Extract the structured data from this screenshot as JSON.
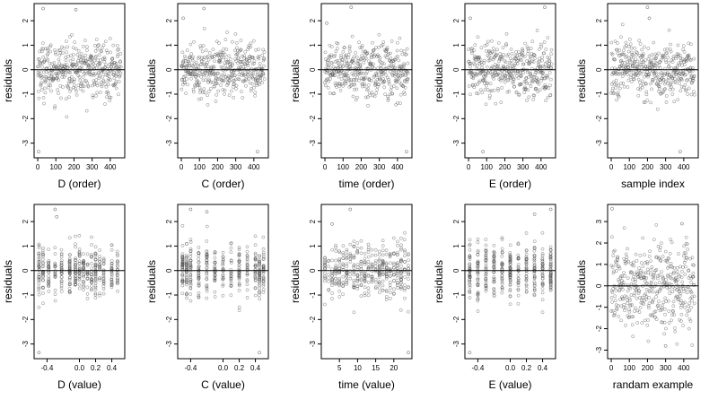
{
  "figure": {
    "background": "#ffffff",
    "point_color": "#555555",
    "axis_color": "#000000",
    "zero_line_color": "#000000"
  },
  "chart_data": [
    {
      "type": "scatter",
      "xlabel": "D (order)",
      "ylabel": "residuals",
      "xlim": [
        -20,
        480
      ],
      "ylim": [
        -3.6,
        2.7
      ],
      "xticks": [
        0,
        100,
        200,
        300,
        400
      ],
      "xtick_labels": [
        "0",
        "100",
        "200",
        "300",
        "400"
      ],
      "yticks": [
        -3,
        -2,
        -1,
        0,
        1,
        2
      ],
      "ytick_labels": [
        "-3",
        "-2",
        "-1",
        "0",
        "1",
        "2"
      ],
      "reference_line_y": 0,
      "grid": false,
      "x_distribution": "order",
      "n_points": 420,
      "y_spread": 0.55,
      "note_outliers": [
        [
          5,
          -3.35
        ],
        [
          30,
          2.5
        ],
        [
          210,
          2.45
        ]
      ]
    },
    {
      "type": "scatter",
      "xlabel": "C (order)",
      "ylabel": "residuals",
      "xlim": [
        -20,
        480
      ],
      "ylim": [
        -3.6,
        2.7
      ],
      "xticks": [
        0,
        100,
        200,
        300,
        400
      ],
      "xtick_labels": [
        "0",
        "100",
        "200",
        "300",
        "400"
      ],
      "yticks": [
        -3,
        -2,
        -1,
        0,
        1,
        2
      ],
      "ytick_labels": [
        "-3",
        "-2",
        "-1",
        "0",
        "1",
        "2"
      ],
      "reference_line_y": 0,
      "grid": false,
      "x_distribution": "order",
      "n_points": 420,
      "y_spread": 0.55,
      "note_outliers": [
        [
          420,
          -3.35
        ],
        [
          125,
          2.5
        ],
        [
          10,
          2.1
        ]
      ]
    },
    {
      "type": "scatter",
      "xlabel": "time (order)",
      "ylabel": "residuals",
      "xlim": [
        -20,
        480
      ],
      "ylim": [
        -3.6,
        2.7
      ],
      "xticks": [
        0,
        100,
        200,
        300,
        400
      ],
      "xtick_labels": [
        "0",
        "100",
        "200",
        "300",
        "400"
      ],
      "yticks": [
        -3,
        -2,
        -1,
        0,
        1,
        2
      ],
      "ytick_labels": [
        "-3",
        "-2",
        "-1",
        "0",
        "1",
        "2"
      ],
      "reference_line_y": 0,
      "grid": false,
      "x_distribution": "order",
      "n_points": 420,
      "y_spread": 0.55,
      "note_outliers": [
        [
          450,
          -3.35
        ],
        [
          145,
          2.55
        ],
        [
          10,
          1.9
        ]
      ]
    },
    {
      "type": "scatter",
      "xlabel": "E (order)",
      "ylabel": "residuals",
      "xlim": [
        -20,
        480
      ],
      "ylim": [
        -3.6,
        2.7
      ],
      "xticks": [
        0,
        100,
        200,
        300,
        400
      ],
      "xtick_labels": [
        "0",
        "100",
        "200",
        "300",
        "400"
      ],
      "yticks": [
        -3,
        -2,
        -1,
        0,
        1,
        2
      ],
      "ytick_labels": [
        "-3",
        "-2",
        "-1",
        "0",
        "1",
        "2"
      ],
      "reference_line_y": 0,
      "grid": false,
      "x_distribution": "order",
      "n_points": 420,
      "y_spread": 0.55,
      "note_outliers": [
        [
          80,
          -3.35
        ],
        [
          420,
          2.55
        ],
        [
          10,
          2.1
        ]
      ]
    },
    {
      "type": "scatter",
      "xlabel": "sample index",
      "ylabel": "residuals",
      "xlim": [
        -20,
        480
      ],
      "ylim": [
        -3.6,
        2.7
      ],
      "xticks": [
        0,
        100,
        200,
        300,
        400
      ],
      "xtick_labels": [
        "0",
        "100",
        "200",
        "300",
        "400"
      ],
      "yticks": [
        -3,
        -2,
        -1,
        0,
        1,
        2
      ],
      "ytick_labels": [
        "-3",
        "-2",
        "-1",
        "0",
        "1",
        "2"
      ],
      "reference_line_y": 0,
      "grid": false,
      "x_distribution": "order",
      "n_points": 420,
      "y_spread": 0.55,
      "note_outliers": [
        [
          380,
          -3.35
        ],
        [
          200,
          2.55
        ],
        [
          210,
          2.1
        ]
      ]
    },
    {
      "type": "scatter",
      "xlabel": "D (value)",
      "ylabel": "residuals",
      "xlim": [
        -0.56,
        0.56
      ],
      "ylim": [
        -3.6,
        2.7
      ],
      "xticks": [
        -0.4,
        0.0,
        0.2,
        0.4
      ],
      "xtick_labels": [
        "-0.4",
        "0.0",
        "0.2",
        "0.4"
      ],
      "yticks": [
        -3,
        -2,
        -1,
        0,
        1,
        2
      ],
      "ytick_labels": [
        "-3",
        "-2",
        "-1",
        "0",
        "1",
        "2"
      ],
      "reference_line_y": 0,
      "grid": false,
      "x_distribution": "discrete",
      "x_levels": [
        -0.5,
        -0.45,
        -0.38,
        -0.3,
        -0.22,
        -0.12,
        -0.05,
        0.0,
        0.05,
        0.1,
        0.15,
        0.2,
        0.25,
        0.3,
        0.4,
        0.47
      ],
      "n_points": 420,
      "y_spread": 0.5,
      "note_outliers": [
        [
          -0.5,
          -3.35
        ],
        [
          -0.3,
          2.5
        ],
        [
          -0.28,
          2.2
        ]
      ]
    },
    {
      "type": "scatter",
      "xlabel": "C (value)",
      "ylabel": "residuals",
      "xlim": [
        -0.56,
        0.56
      ],
      "ylim": [
        -3.6,
        2.7
      ],
      "xticks": [
        -0.4,
        0.0,
        0.2,
        0.4
      ],
      "xtick_labels": [
        "-0.4",
        "0.0",
        "0.2",
        "0.4"
      ],
      "yticks": [
        -3,
        -2,
        -1,
        0,
        1,
        2
      ],
      "ytick_labels": [
        "-3",
        "-2",
        "-1",
        "0",
        "1",
        "2"
      ],
      "reference_line_y": 0,
      "grid": false,
      "x_distribution": "discrete",
      "x_levels": [
        -0.5,
        -0.45,
        -0.4,
        -0.3,
        -0.2,
        -0.1,
        0.0,
        0.1,
        0.2,
        0.3,
        0.4,
        0.45,
        0.5
      ],
      "n_points": 420,
      "y_spread": 0.55,
      "note_outliers": [
        [
          0.45,
          -3.35
        ],
        [
          -0.4,
          2.5
        ],
        [
          -0.2,
          2.4
        ]
      ]
    },
    {
      "type": "scatter",
      "xlabel": "time (value)",
      "ylabel": "residuals",
      "xlim": [
        0,
        25
      ],
      "ylim": [
        -3.6,
        2.7
      ],
      "xticks": [
        5,
        10,
        15,
        20
      ],
      "xtick_labels": [
        "5",
        "10",
        "15",
        "20"
      ],
      "yticks": [
        -3,
        -2,
        -1,
        0,
        1,
        2
      ],
      "ytick_labels": [
        "-3",
        "-2",
        "-1",
        "0",
        "1",
        "2"
      ],
      "reference_line_y": 0,
      "grid": false,
      "x_distribution": "discrete",
      "x_levels": [
        1,
        2,
        3,
        4,
        5,
        6,
        7,
        8,
        9,
        10,
        11,
        12,
        13,
        14,
        15,
        16,
        17,
        18,
        19,
        20,
        21,
        22,
        23,
        24
      ],
      "n_points": 420,
      "y_spread": 0.55,
      "note_outliers": [
        [
          24,
          -3.35
        ],
        [
          8,
          2.5
        ],
        [
          3,
          1.9
        ]
      ]
    },
    {
      "type": "scatter",
      "xlabel": "E (value)",
      "ylabel": "residuals",
      "xlim": [
        -0.56,
        0.56
      ],
      "ylim": [
        -3.6,
        2.7
      ],
      "xticks": [
        -0.4,
        0.0,
        0.2,
        0.4
      ],
      "xtick_labels": [
        "-0.4",
        "0.0",
        "0.2",
        "0.4"
      ],
      "yticks": [
        -3,
        -2,
        -1,
        0,
        1,
        2
      ],
      "ytick_labels": [
        "-3",
        "-2",
        "-1",
        "0",
        "1",
        "2"
      ],
      "reference_line_y": 0,
      "grid": false,
      "x_distribution": "discrete",
      "x_levels": [
        -0.5,
        -0.4,
        -0.3,
        -0.2,
        -0.1,
        0.0,
        0.1,
        0.2,
        0.3,
        0.4,
        0.5
      ],
      "n_points": 420,
      "y_spread": 0.55,
      "note_outliers": [
        [
          -0.5,
          -3.35
        ],
        [
          0.5,
          2.5
        ],
        [
          0.3,
          2.3
        ]
      ]
    },
    {
      "type": "scatter",
      "xlabel": "randam example",
      "ylabel": "residuals",
      "xlim": [
        -20,
        480
      ],
      "ylim": [
        -3.4,
        3.8
      ],
      "xticks": [
        0,
        100,
        200,
        300,
        400
      ],
      "xtick_labels": [
        "0",
        "100",
        "200",
        "300",
        "400"
      ],
      "yticks": [
        -3,
        -2,
        -1,
        0,
        1,
        2,
        3
      ],
      "ytick_labels": [
        "-3",
        "-2",
        "-1",
        "0",
        "1",
        "2",
        "3"
      ],
      "reference_line_y": 0,
      "grid": false,
      "x_distribution": "order",
      "n_points": 420,
      "y_spread": 1.0,
      "note_outliers": [
        [
          300,
          -2.8
        ],
        [
          5,
          3.6
        ],
        [
          390,
          2.9
        ]
      ]
    }
  ]
}
